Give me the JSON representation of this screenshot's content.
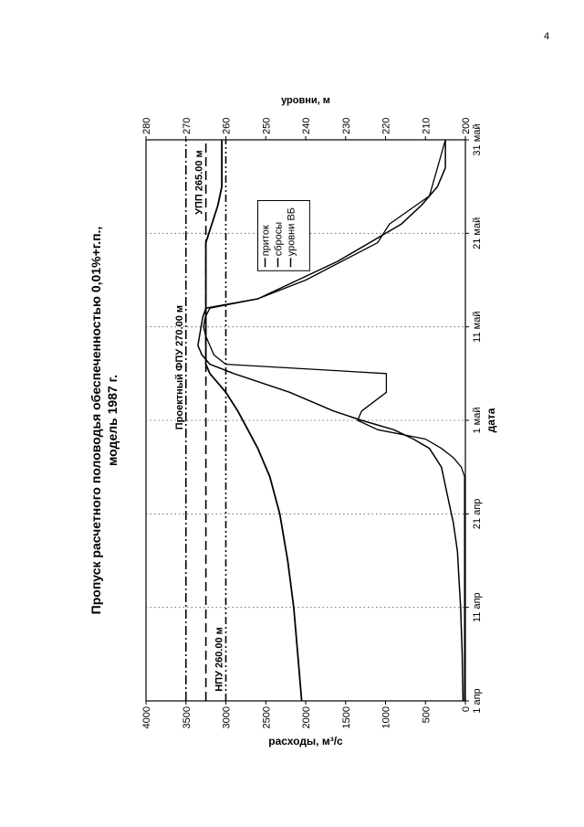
{
  "page_number": "4",
  "chart_data": {
    "type": "line",
    "title": "Пропуск расчетного половодья обеспеченностью 0,01%+г.п.,",
    "subtitle": "модель 1987 г.",
    "xlabel": "дата",
    "ylabel_left": "расходы, м³/с",
    "ylabel_right": "уровни, м",
    "x_ticks": [
      "1 апр",
      "11 апр",
      "21 апр",
      "1 май",
      "11 май",
      "21 май",
      "31 май"
    ],
    "xlim_days": [
      0,
      60
    ],
    "ylim_left": [
      0,
      4000
    ],
    "ylim_right": [
      200,
      280
    ],
    "y_left_ticks": [
      "0",
      "500",
      "1000",
      "1500",
      "2000",
      "2500",
      "3000",
      "3500",
      "4000"
    ],
    "y_right_ticks": [
      "200",
      "210",
      "220",
      "230",
      "240",
      "250",
      "260",
      "270",
      "280"
    ],
    "grid": "vertical dotted",
    "legend": {
      "position": "top-right",
      "items": [
        "приток",
        "сбросы",
        "уровни ВБ"
      ]
    },
    "series": [
      {
        "name": "приток",
        "axis": "left",
        "x": [
          0,
          5,
          10,
          13,
          16,
          19,
          21,
          23,
          25,
          27,
          28,
          29,
          30,
          31,
          33,
          35,
          36,
          37,
          38,
          39,
          41,
          42,
          43,
          45,
          47,
          49,
          51,
          53,
          55,
          57,
          60
        ],
        "y": [
          30,
          40,
          60,
          80,
          100,
          150,
          200,
          250,
          300,
          450,
          650,
          900,
          1300,
          1650,
          2200,
          2900,
          3200,
          3300,
          3350,
          3330,
          3290,
          3250,
          2600,
          2100,
          1600,
          1200,
          800,
          550,
          350,
          250,
          250
        ]
      },
      {
        "name": "сбросы",
        "axis": "left",
        "x": [
          0,
          5,
          10,
          15,
          20,
          24,
          25,
          26,
          27,
          28,
          29,
          30,
          31,
          33,
          35,
          36,
          37,
          38,
          39,
          40,
          41,
          42,
          43,
          45,
          49,
          51,
          54,
          57,
          60
        ],
        "y": [
          10,
          10,
          10,
          10,
          10,
          10,
          50,
          150,
          300,
          500,
          1100,
          1350,
          1300,
          990,
          990,
          3000,
          3150,
          3200,
          3250,
          3280,
          3260,
          3200,
          2600,
          2000,
          1100,
          950,
          450,
          350,
          250
        ]
      },
      {
        "name": "уровни ВБ",
        "axis": "right",
        "x": [
          0,
          5,
          10,
          15,
          20,
          24,
          27,
          29,
          31,
          33,
          34,
          35,
          36,
          40,
          45,
          49,
          51,
          53,
          55,
          60
        ],
        "y": [
          241,
          242,
          243,
          244.5,
          246.5,
          249,
          252,
          254.5,
          257,
          260,
          262,
          264,
          265,
          265,
          265,
          265,
          263.5,
          262,
          261,
          261
        ]
      }
    ],
    "reference_lines": [
      {
        "label": "Проектный ФПУ 270.00 м",
        "axis": "right",
        "value": 270,
        "style": "dash-dot"
      },
      {
        "label": "УПП 265.00 м",
        "axis": "right",
        "value": 265,
        "style": "dashed"
      },
      {
        "label": "НПУ 260.00 м",
        "axis": "right",
        "value": 260,
        "style": "dash-dot-dot"
      }
    ]
  }
}
